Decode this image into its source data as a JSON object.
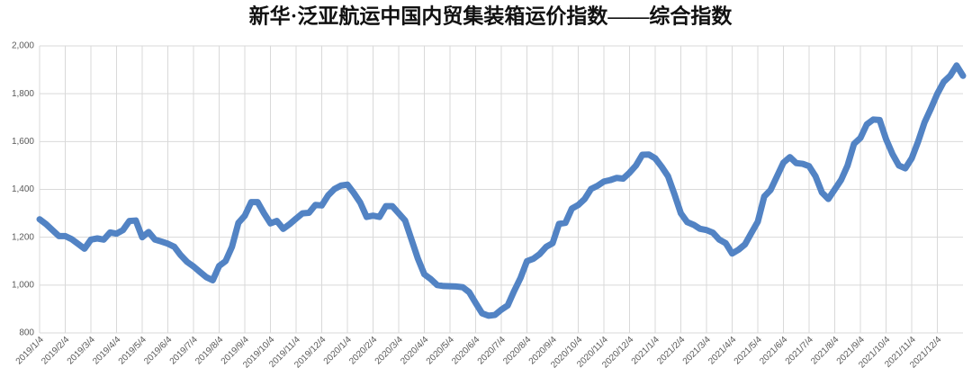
{
  "chart_data": {
    "type": "line",
    "title": "新华·泛亚航运中国内贸集装箱运价指数——综合指数",
    "categories": [
      "2019/1/4",
      null,
      null,
      null,
      "2019/2/4",
      null,
      null,
      null,
      "2019/3/4",
      null,
      null,
      null,
      "2019/4/4",
      null,
      null,
      null,
      "2019/5/4",
      null,
      null,
      null,
      "2019/6/4",
      null,
      null,
      null,
      "2019/7/4",
      null,
      null,
      null,
      "2019/8/4",
      null,
      null,
      null,
      "2019/9/4",
      null,
      null,
      null,
      "2019/10/4",
      null,
      null,
      null,
      "2019/11/4",
      null,
      null,
      null,
      "2019/12/4",
      null,
      null,
      null,
      "2020/1/4",
      null,
      null,
      null,
      "2020/2/4",
      null,
      null,
      null,
      "2020/3/4",
      null,
      null,
      null,
      "2020/4/4",
      null,
      null,
      null,
      "2020/5/4",
      null,
      null,
      null,
      "2020/6/4",
      null,
      null,
      null,
      "2020/7/4",
      null,
      null,
      null,
      "2020/8/4",
      null,
      null,
      null,
      "2020/9/4",
      null,
      null,
      null,
      "2020/10/4",
      null,
      null,
      null,
      "2020/11/4",
      null,
      null,
      null,
      "2020/12/4",
      null,
      null,
      null,
      "2021/1/4",
      null,
      null,
      null,
      "2021/2/4",
      null,
      null,
      null,
      "2021/3/4",
      null,
      null,
      null,
      "2021/4/4",
      null,
      null,
      null,
      "2021/5/4",
      null,
      null,
      null,
      "2021/6/4",
      null,
      null,
      null,
      "2021/7/4",
      null,
      null,
      null,
      "2021/8/4",
      null,
      null,
      null,
      "2021/9/4",
      null,
      null,
      null,
      "2021/10/4",
      null,
      null,
      null,
      "2021/11/4",
      null,
      null,
      null,
      "2021/12/4",
      null,
      null,
      null,
      null
    ],
    "series": [
      {
        "name": "综合指数",
        "color": "#5283c4",
        "values": [
          1275,
          1255,
          1230,
          1205,
          1205,
          1192,
          1172,
          1152,
          1190,
          1195,
          1190,
          1220,
          1215,
          1230,
          1268,
          1270,
          1200,
          1222,
          1190,
          1182,
          1173,
          1160,
          1125,
          1097,
          1078,
          1055,
          1033,
          1020,
          1080,
          1100,
          1160,
          1260,
          1290,
          1347,
          1347,
          1300,
          1258,
          1268,
          1235,
          1255,
          1278,
          1300,
          1302,
          1335,
          1333,
          1375,
          1402,
          1416,
          1420,
          1385,
          1345,
          1285,
          1290,
          1285,
          1330,
          1330,
          1300,
          1270,
          1190,
          1110,
          1045,
          1025,
          1000,
          996,
          995,
          994,
          991,
          970,
          925,
          882,
          872,
          875,
          897,
          915,
          975,
          1030,
          1100,
          1110,
          1130,
          1160,
          1175,
          1256,
          1260,
          1320,
          1335,
          1360,
          1402,
          1415,
          1433,
          1439,
          1448,
          1445,
          1470,
          1500,
          1545,
          1546,
          1530,
          1495,
          1455,
          1380,
          1300,
          1263,
          1252,
          1235,
          1230,
          1219,
          1190,
          1175,
          1132,
          1148,
          1170,
          1218,
          1265,
          1370,
          1398,
          1455,
          1512,
          1535,
          1510,
          1507,
          1497,
          1455,
          1387,
          1360,
          1400,
          1440,
          1500,
          1590,
          1615,
          1672,
          1692,
          1690,
          1610,
          1548,
          1500,
          1488,
          1530,
          1600,
          1680,
          1738,
          1800,
          1850,
          1875,
          1918,
          1875
        ]
      }
    ],
    "ylim": [
      800,
      2000
    ],
    "yticks": [
      800,
      {
        "value": 1000,
        "label": "1,000"
      },
      {
        "value": 1200,
        "label": "1,200"
      },
      {
        "value": 1400,
        "label": "1,400"
      },
      {
        "value": 1600,
        "label": "1,600"
      },
      {
        "value": 1800,
        "label": "1,800"
      },
      {
        "value": 2000,
        "label": "2,000"
      }
    ],
    "grid": true
  }
}
